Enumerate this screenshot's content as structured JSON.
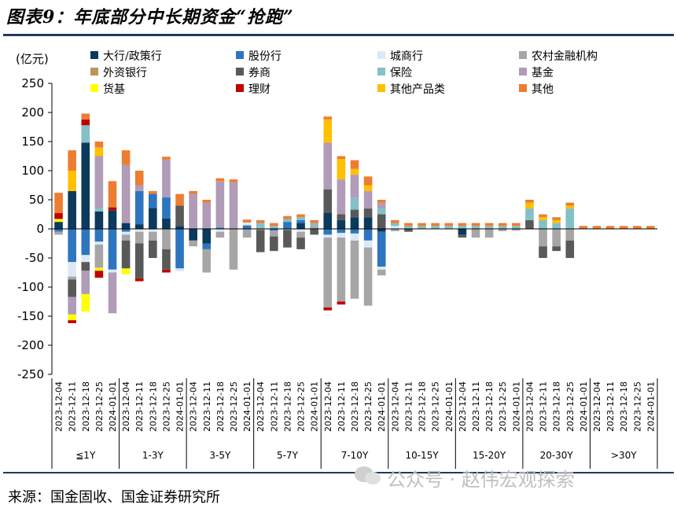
{
  "title": "图表9：年底部分中长期资金“抢跑”",
  "source": "来源：国金固收、国金证券研究所",
  "watermark": "公众号 · 赵伟宏观探索",
  "chart_data": {
    "type": "bar",
    "stacked": true,
    "unit": "(亿元)",
    "ylim": [
      -250,
      250
    ],
    "yticks": [
      250,
      200,
      150,
      100,
      50,
      0,
      -50,
      -100,
      -150,
      -200,
      -250
    ],
    "grid": false,
    "legend_position": "top",
    "groups": [
      "≦1Y",
      "1-3Y",
      "3-5Y",
      "5-7Y",
      "7-10Y",
      "10-15Y",
      "15-20Y",
      "20-30Y",
      ">30Y"
    ],
    "dates": [
      "2023-12-04",
      "2023-12-11",
      "2023-12-18",
      "2023-12-25",
      "2024-01-01"
    ],
    "series": [
      {
        "name": "大行/政策行",
        "color": "#0b3a5c",
        "values": [
          [
            12,
            65,
            148,
            30,
            32
          ],
          [
            10,
            8,
            36,
            18,
            5
          ],
          [
            -20,
            -25,
            0,
            0,
            0
          ],
          [
            0,
            0,
            0,
            10,
            0
          ],
          [
            28,
            15,
            20,
            20,
            -5
          ],
          [
            0,
            0,
            0,
            0,
            0
          ],
          [
            -10,
            0,
            0,
            0,
            0
          ],
          [
            0,
            0,
            0,
            0,
            0
          ],
          [
            0,
            0,
            0,
            0,
            0
          ]
        ]
      },
      {
        "name": "股份行",
        "color": "#2e75c0",
        "values": [
          [
            -5,
            -57,
            -45,
            -22,
            -70
          ],
          [
            -5,
            57,
            24,
            36,
            -68
          ],
          [
            0,
            -10,
            2,
            0,
            6
          ],
          [
            0,
            -3,
            12,
            5,
            0
          ],
          [
            -10,
            -7,
            -8,
            -20,
            -60
          ],
          [
            0,
            0,
            0,
            0,
            0
          ],
          [
            0,
            0,
            0,
            0,
            0
          ],
          [
            0,
            0,
            0,
            0,
            0
          ],
          [
            0,
            0,
            0,
            0,
            0
          ]
        ]
      },
      {
        "name": "城商行",
        "color": "#dce9f5",
        "values": [
          [
            0,
            -25,
            -12,
            -5,
            -5
          ],
          [
            -5,
            -5,
            -5,
            0,
            -5
          ],
          [
            0,
            0,
            -5,
            0,
            5
          ],
          [
            0,
            0,
            0,
            -5,
            0
          ],
          [
            -5,
            -8,
            -12,
            -12,
            -5
          ],
          [
            5,
            0,
            0,
            0,
            0
          ],
          [
            0,
            0,
            0,
            0,
            0
          ],
          [
            0,
            0,
            0,
            0,
            0
          ],
          [
            0,
            0,
            0,
            0,
            0
          ]
        ]
      },
      {
        "name": "农村金融机构",
        "color": "#a6a6a6",
        "values": [
          [
            -5,
            -5,
            0,
            -40,
            0
          ],
          [
            -10,
            -20,
            -15,
            -35,
            0
          ],
          [
            -10,
            -40,
            -10,
            -70,
            -15
          ],
          [
            -2,
            -10,
            -2,
            -10,
            5
          ],
          [
            -120,
            -110,
            -100,
            -100,
            -10
          ],
          [
            -4,
            0,
            0,
            0,
            0
          ],
          [
            0,
            -15,
            -15,
            -4,
            -3
          ],
          [
            0,
            -30,
            -30,
            -20,
            0
          ],
          [
            0,
            0,
            0,
            0,
            0
          ]
        ]
      },
      {
        "name": "外资银行",
        "color": "#b8965a",
        "values": [
          [
            0,
            0,
            0,
            0,
            0
          ],
          [
            0,
            0,
            0,
            0,
            0
          ],
          [
            0,
            0,
            0,
            0,
            0
          ],
          [
            0,
            0,
            0,
            0,
            0
          ],
          [
            0,
            0,
            0,
            0,
            0
          ],
          [
            0,
            0,
            0,
            0,
            0
          ],
          [
            0,
            0,
            0,
            0,
            0
          ],
          [
            0,
            0,
            0,
            0,
            0
          ],
          [
            0,
            0,
            0,
            0,
            0
          ]
        ]
      },
      {
        "name": "券商",
        "color": "#595959",
        "values": [
          [
            0,
            -30,
            -15,
            0,
            0
          ],
          [
            -48,
            -60,
            -30,
            -35,
            35
          ],
          [
            0,
            0,
            0,
            0,
            0
          ],
          [
            -38,
            -25,
            -30,
            -20,
            -10
          ],
          [
            40,
            10,
            13,
            15,
            25
          ],
          [
            0,
            -5,
            0,
            0,
            0
          ],
          [
            -5,
            0,
            0,
            0,
            0
          ],
          [
            15,
            -20,
            -8,
            -30,
            0
          ],
          [
            0,
            0,
            0,
            0,
            0
          ]
        ]
      },
      {
        "name": "保险",
        "color": "#83c0c8",
        "values": [
          [
            0,
            0,
            30,
            5,
            0
          ],
          [
            0,
            0,
            0,
            0,
            0
          ],
          [
            0,
            0,
            0,
            0,
            0
          ],
          [
            10,
            5,
            5,
            5,
            5
          ],
          [
            0,
            0,
            20,
            0,
            10
          ],
          [
            5,
            5,
            5,
            5,
            5
          ],
          [
            5,
            5,
            5,
            5,
            5
          ],
          [
            20,
            15,
            10,
            35,
            0
          ],
          [
            0,
            0,
            0,
            0,
            0
          ]
        ]
      },
      {
        "name": "基金",
        "color": "#b09bb8",
        "values": [
          [
            0,
            -30,
            -40,
            90,
            -70
          ],
          [
            100,
            10,
            0,
            65,
            0
          ],
          [
            60,
            45,
            80,
            80,
            0
          ],
          [
            0,
            0,
            0,
            0,
            0
          ],
          [
            80,
            60,
            40,
            30,
            10
          ],
          [
            0,
            0,
            0,
            0,
            0
          ],
          [
            0,
            0,
            0,
            0,
            0
          ],
          [
            0,
            0,
            0,
            0,
            0
          ],
          [
            0,
            0,
            0,
            0,
            0
          ]
        ]
      },
      {
        "name": "货基",
        "color": "#ffff00",
        "values": [
          [
            5,
            -10,
            -30,
            -5,
            0
          ],
          [
            -10,
            0,
            0,
            0,
            0
          ],
          [
            0,
            0,
            0,
            0,
            0
          ],
          [
            0,
            0,
            0,
            0,
            0
          ],
          [
            0,
            0,
            0,
            0,
            0
          ],
          [
            0,
            0,
            0,
            0,
            0
          ],
          [
            0,
            0,
            0,
            0,
            0
          ],
          [
            0,
            0,
            0,
            0,
            0
          ],
          [
            0,
            0,
            0,
            0,
            0
          ]
        ]
      },
      {
        "name": "理财",
        "color": "#c00000",
        "values": [
          [
            10,
            -5,
            10,
            -12,
            5
          ],
          [
            0,
            -5,
            0,
            -5,
            0
          ],
          [
            0,
            0,
            0,
            0,
            0
          ],
          [
            0,
            0,
            0,
            0,
            0
          ],
          [
            -5,
            -5,
            0,
            0,
            0
          ],
          [
            0,
            0,
            0,
            0,
            0
          ],
          [
            0,
            0,
            0,
            0,
            0
          ],
          [
            0,
            0,
            0,
            0,
            0
          ],
          [
            0,
            0,
            0,
            0,
            0
          ]
        ]
      },
      {
        "name": "其他产品类",
        "color": "#ffc000",
        "values": [
          [
            0,
            35,
            0,
            15,
            0
          ],
          [
            0,
            0,
            0,
            0,
            0
          ],
          [
            0,
            0,
            0,
            0,
            0
          ],
          [
            0,
            0,
            0,
            0,
            0
          ],
          [
            40,
            35,
            10,
            10,
            0
          ],
          [
            0,
            0,
            0,
            0,
            0
          ],
          [
            0,
            0,
            0,
            0,
            0
          ],
          [
            10,
            5,
            5,
            5,
            0
          ],
          [
            0,
            0,
            0,
            0,
            0
          ]
        ]
      },
      {
        "name": "其他",
        "color": "#ed7d31",
        "values": [
          [
            35,
            35,
            10,
            10,
            45
          ],
          [
            25,
            25,
            5,
            5,
            20
          ],
          [
            5,
            5,
            5,
            5,
            5
          ],
          [
            5,
            5,
            5,
            5,
            5
          ],
          [
            5,
            5,
            15,
            15,
            5
          ],
          [
            5,
            5,
            5,
            5,
            5
          ],
          [
            5,
            5,
            5,
            5,
            5
          ],
          [
            5,
            5,
            5,
            5,
            5
          ],
          [
            5,
            5,
            5,
            5,
            5
          ]
        ]
      }
    ]
  }
}
